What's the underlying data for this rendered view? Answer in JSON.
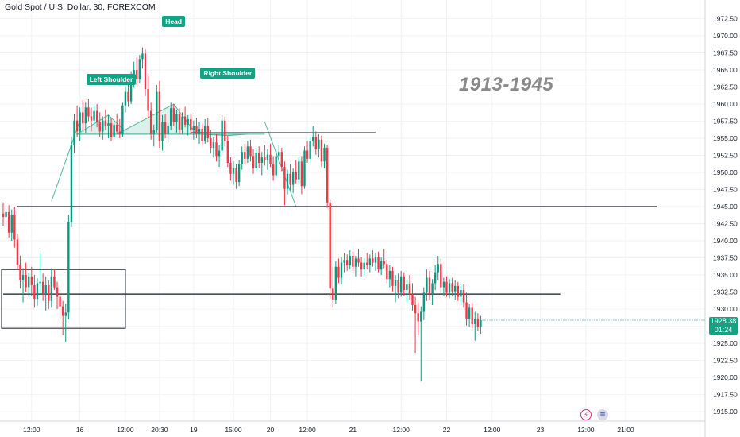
{
  "header": {
    "title": "Gold Spot / U.S. Dollar, 30, FOREXCOM"
  },
  "annotation_text": "1913-1945",
  "pattern_labels": {
    "left_shoulder": "Left Shoulder",
    "head": "Head",
    "right_shoulder": "Right Shoulder"
  },
  "last_price": {
    "price": "1928.38",
    "countdown": "01:24"
  },
  "colors": {
    "up": "#089981",
    "down": "#f23645",
    "accent": "#12a385",
    "pattern_fill": "#d6efe7",
    "pattern_stroke": "#4fb89a"
  },
  "icons": [
    "lightning-icon",
    "us-flag-icon"
  ],
  "chart_data": {
    "type": "candlestick",
    "symbol": "Gold Spot / U.S. Dollar",
    "interval": "30",
    "source": "FOREXCOM",
    "y_ticks": [
      1915.0,
      1917.5,
      1920.0,
      1922.5,
      1925.0,
      1927.5,
      1930.0,
      1932.5,
      1935.0,
      1937.5,
      1940.0,
      1942.5,
      1945.0,
      1947.5,
      1950.0,
      1952.5,
      1955.0,
      1957.5,
      1960.0,
      1962.5,
      1965.0,
      1967.5,
      1970.0,
      1972.5
    ],
    "y_tick_labels": [
      "1915.00",
      "1917.50",
      "1920.00",
      "1922.50",
      "1925.00",
      "1927.50",
      "1930.00",
      "1932.50",
      "1935.00",
      "1937.50",
      "1940.00",
      "1942.50",
      "1945.00",
      "1947.50",
      "1950.00",
      "1952.50",
      "1955.00",
      "1957.50",
      "1960.00",
      "1962.50",
      "1965.00",
      "1967.50",
      "1970.00",
      "1972.50"
    ],
    "ylim": [
      1914.2,
      1974.3
    ],
    "x_ticks": [
      {
        "label": "12:00",
        "bar": 10
      },
      {
        "label": "16",
        "bar": 27
      },
      {
        "label": "12:00",
        "bar": 43
      },
      {
        "label": "20:30",
        "bar": 55
      },
      {
        "label": "19",
        "bar": 67
      },
      {
        "label": "15:00",
        "bar": 81
      },
      {
        "label": "20",
        "bar": 94
      },
      {
        "label": "12:00",
        "bar": 107
      },
      {
        "label": "21",
        "bar": 123
      },
      {
        "label": "12:00",
        "bar": 140
      },
      {
        "label": "22",
        "bar": 156
      },
      {
        "label": "12:00",
        "bar": 172
      },
      {
        "label": "23",
        "bar": 189
      },
      {
        "label": "12:00",
        "bar": 205
      },
      {
        "label": "21:00",
        "bar": 219
      }
    ],
    "key_levels": [
      {
        "price": 1955.8,
        "from_bar": 66,
        "to_bar": 131
      },
      {
        "price": 1945.0,
        "from_bar": 5,
        "to_bar": 230
      },
      {
        "price": 1932.2,
        "from_bar": 0,
        "to_bar": 196
      }
    ],
    "box": {
      "from_bar": 0,
      "to_bar": 43,
      "top": 1935.8,
      "bottom": 1927.2
    },
    "last_price": 1928.38,
    "candles": [
      [
        1944.0,
        1945.6,
        1942.2,
        1943.5
      ],
      [
        1943.5,
        1944.8,
        1941.8,
        1944.2
      ],
      [
        1944.2,
        1945.2,
        1940.5,
        1941.2
      ],
      [
        1941.2,
        1944.6,
        1940.0,
        1943.8
      ],
      [
        1943.8,
        1945.0,
        1939.0,
        1940.2
      ],
      [
        1940.2,
        1941.0,
        1935.8,
        1936.5
      ],
      [
        1936.5,
        1937.8,
        1933.0,
        1934.2
      ],
      [
        1934.2,
        1936.0,
        1931.0,
        1935.0
      ],
      [
        1935.0,
        1936.8,
        1932.5,
        1933.2
      ],
      [
        1933.2,
        1935.4,
        1931.8,
        1934.8
      ],
      [
        1934.8,
        1936.2,
        1932.0,
        1933.5
      ],
      [
        1933.5,
        1935.0,
        1930.2,
        1931.5
      ],
      [
        1931.5,
        1934.5,
        1930.5,
        1933.8
      ],
      [
        1933.8,
        1938.2,
        1932.2,
        1934.0
      ],
      [
        1934.0,
        1935.2,
        1931.2,
        1932.2
      ],
      [
        1932.2,
        1934.8,
        1929.8,
        1933.5
      ],
      [
        1933.5,
        1934.2,
        1930.0,
        1931.2
      ],
      [
        1931.2,
        1936.0,
        1930.2,
        1934.8
      ],
      [
        1934.8,
        1935.8,
        1932.8,
        1933.2
      ],
      [
        1933.2,
        1934.0,
        1930.0,
        1931.8
      ],
      [
        1931.8,
        1933.2,
        1928.6,
        1930.4
      ],
      [
        1930.4,
        1931.2,
        1926.2,
        1929.0
      ],
      [
        1929.0,
        1930.8,
        1925.2,
        1929.5
      ],
      [
        1929.5,
        1943.8,
        1928.5,
        1942.8
      ],
      [
        1942.8,
        1955.2,
        1942.0,
        1954.0
      ],
      [
        1954.0,
        1958.5,
        1952.8,
        1957.6
      ],
      [
        1957.6,
        1959.8,
        1955.2,
        1956.0
      ],
      [
        1956.0,
        1959.5,
        1954.6,
        1958.8
      ],
      [
        1958.8,
        1960.6,
        1956.2,
        1957.2
      ],
      [
        1957.2,
        1960.2,
        1955.8,
        1959.5
      ],
      [
        1959.5,
        1960.8,
        1957.5,
        1958.2
      ],
      [
        1958.2,
        1959.5,
        1956.0,
        1957.6
      ],
      [
        1957.6,
        1959.8,
        1956.8,
        1959.0
      ],
      [
        1959.0,
        1960.0,
        1956.6,
        1957.4
      ],
      [
        1957.4,
        1958.8,
        1955.2,
        1956.0
      ],
      [
        1956.0,
        1958.2,
        1954.8,
        1957.6
      ],
      [
        1957.6,
        1959.2,
        1956.2,
        1956.8
      ],
      [
        1956.8,
        1958.4,
        1955.0,
        1957.2
      ],
      [
        1957.2,
        1958.0,
        1954.6,
        1955.2
      ],
      [
        1955.2,
        1957.8,
        1954.8,
        1957.0
      ],
      [
        1957.0,
        1958.6,
        1955.6,
        1956.0
      ],
      [
        1956.0,
        1957.8,
        1955.0,
        1955.6
      ],
      [
        1955.6,
        1960.2,
        1955.2,
        1959.8
      ],
      [
        1959.8,
        1962.6,
        1958.8,
        1961.8
      ],
      [
        1961.8,
        1963.2,
        1959.6,
        1960.4
      ],
      [
        1960.4,
        1964.8,
        1960.0,
        1963.9
      ],
      [
        1963.9,
        1966.2,
        1962.4,
        1965.0
      ],
      [
        1965.0,
        1966.8,
        1962.8,
        1963.6
      ],
      [
        1963.6,
        1967.2,
        1963.0,
        1966.6
      ],
      [
        1966.6,
        1968.3,
        1965.2,
        1967.4
      ],
      [
        1967.4,
        1968.0,
        1961.2,
        1962.2
      ],
      [
        1962.2,
        1964.2,
        1958.0,
        1959.0
      ],
      [
        1959.0,
        1960.2,
        1954.8,
        1955.6
      ],
      [
        1955.6,
        1957.0,
        1953.8,
        1956.2
      ],
      [
        1956.2,
        1962.8,
        1955.8,
        1961.8
      ],
      [
        1961.8,
        1963.4,
        1953.6,
        1954.6
      ],
      [
        1954.6,
        1958.4,
        1953.2,
        1957.4
      ],
      [
        1957.4,
        1958.6,
        1955.0,
        1955.6
      ],
      [
        1955.6,
        1957.2,
        1954.4,
        1956.8
      ],
      [
        1956.8,
        1960.2,
        1956.2,
        1959.4
      ],
      [
        1959.4,
        1960.0,
        1956.8,
        1957.4
      ],
      [
        1957.4,
        1959.2,
        1955.8,
        1958.6
      ],
      [
        1958.6,
        1959.4,
        1955.6,
        1956.2
      ],
      [
        1956.2,
        1958.8,
        1955.6,
        1958.2
      ],
      [
        1958.2,
        1959.6,
        1956.6,
        1957.0
      ],
      [
        1957.0,
        1958.4,
        1955.4,
        1957.8
      ],
      [
        1957.8,
        1958.6,
        1955.6,
        1956.2
      ],
      [
        1956.2,
        1957.6,
        1954.8,
        1956.8
      ],
      [
        1956.8,
        1958.0,
        1955.0,
        1955.6
      ],
      [
        1955.6,
        1957.4,
        1954.2,
        1956.4
      ],
      [
        1956.4,
        1957.2,
        1954.0,
        1954.6
      ],
      [
        1954.6,
        1957.8,
        1954.2,
        1956.8
      ],
      [
        1956.8,
        1958.0,
        1954.4,
        1955.0
      ],
      [
        1955.0,
        1956.2,
        1952.8,
        1953.6
      ],
      [
        1953.6,
        1955.2,
        1952.2,
        1954.4
      ],
      [
        1954.4,
        1955.6,
        1951.6,
        1952.4
      ],
      [
        1952.4,
        1954.0,
        1950.8,
        1953.2
      ],
      [
        1953.2,
        1958.4,
        1952.6,
        1957.6
      ],
      [
        1957.6,
        1958.2,
        1953.8,
        1954.6
      ],
      [
        1954.6,
        1955.4,
        1950.8,
        1951.4
      ],
      [
        1951.4,
        1952.2,
        1948.8,
        1949.8
      ],
      [
        1949.8,
        1951.6,
        1948.2,
        1950.6
      ],
      [
        1950.6,
        1951.2,
        1947.6,
        1948.6
      ],
      [
        1948.6,
        1951.8,
        1948.0,
        1951.2
      ],
      [
        1951.2,
        1953.8,
        1950.4,
        1953.0
      ],
      [
        1953.0,
        1954.2,
        1951.2,
        1952.0
      ],
      [
        1952.0,
        1954.6,
        1951.4,
        1953.8
      ],
      [
        1953.8,
        1954.8,
        1951.6,
        1952.4
      ],
      [
        1952.4,
        1953.4,
        1949.8,
        1950.6
      ],
      [
        1950.6,
        1953.6,
        1950.2,
        1952.8
      ],
      [
        1952.8,
        1953.8,
        1950.6,
        1951.4
      ],
      [
        1951.4,
        1953.0,
        1949.6,
        1952.2
      ],
      [
        1952.2,
        1954.0,
        1951.0,
        1951.8
      ],
      [
        1951.8,
        1953.4,
        1950.4,
        1952.6
      ],
      [
        1952.6,
        1954.2,
        1950.8,
        1951.2
      ],
      [
        1951.2,
        1952.4,
        1948.8,
        1949.6
      ],
      [
        1949.6,
        1953.2,
        1949.2,
        1952.4
      ],
      [
        1952.4,
        1954.0,
        1951.6,
        1953.0
      ],
      [
        1953.0,
        1953.6,
        1950.2,
        1950.8
      ],
      [
        1950.8,
        1951.6,
        1945.2,
        1947.6
      ],
      [
        1947.6,
        1950.4,
        1946.8,
        1949.8
      ],
      [
        1949.8,
        1951.2,
        1947.4,
        1948.2
      ],
      [
        1948.2,
        1950.6,
        1947.0,
        1950.0
      ],
      [
        1950.0,
        1951.8,
        1948.4,
        1949.0
      ],
      [
        1949.0,
        1952.2,
        1948.2,
        1951.6
      ],
      [
        1951.6,
        1952.4,
        1946.8,
        1948.0
      ],
      [
        1948.0,
        1953.8,
        1947.6,
        1953.2
      ],
      [
        1953.2,
        1954.6,
        1951.4,
        1952.0
      ],
      [
        1952.0,
        1955.2,
        1951.4,
        1954.6
      ],
      [
        1954.6,
        1956.8,
        1953.8,
        1955.2
      ],
      [
        1955.2,
        1956.0,
        1952.6,
        1953.4
      ],
      [
        1953.4,
        1955.6,
        1952.2,
        1954.8
      ],
      [
        1954.8,
        1955.4,
        1950.8,
        1951.6
      ],
      [
        1951.6,
        1954.2,
        1950.6,
        1953.6
      ],
      [
        1953.6,
        1954.0,
        1944.8,
        1945.6
      ],
      [
        1945.6,
        1946.0,
        1931.5,
        1933.0
      ],
      [
        1933.0,
        1936.2,
        1930.2,
        1931.4
      ],
      [
        1931.4,
        1937.0,
        1930.8,
        1936.2
      ],
      [
        1936.2,
        1937.4,
        1933.8,
        1934.6
      ],
      [
        1934.6,
        1937.6,
        1933.6,
        1936.8
      ],
      [
        1936.8,
        1938.2,
        1935.4,
        1937.2
      ],
      [
        1937.2,
        1938.0,
        1935.6,
        1936.4
      ],
      [
        1936.4,
        1938.6,
        1935.8,
        1937.8
      ],
      [
        1937.8,
        1938.4,
        1935.6,
        1936.2
      ],
      [
        1936.2,
        1937.8,
        1934.8,
        1937.4
      ],
      [
        1937.4,
        1938.8,
        1936.2,
        1936.8
      ],
      [
        1936.8,
        1937.6,
        1934.8,
        1935.8
      ],
      [
        1935.8,
        1937.4,
        1935.0,
        1936.8
      ],
      [
        1936.8,
        1938.2,
        1935.8,
        1936.4
      ],
      [
        1936.4,
        1938.0,
        1935.4,
        1937.4
      ],
      [
        1937.4,
        1938.6,
        1936.2,
        1936.8
      ],
      [
        1936.8,
        1938.2,
        1935.6,
        1937.6
      ],
      [
        1937.6,
        1938.4,
        1935.4,
        1935.8
      ],
      [
        1935.8,
        1937.6,
        1935.0,
        1937.0
      ],
      [
        1937.0,
        1938.8,
        1936.0,
        1936.6
      ],
      [
        1936.6,
        1937.2,
        1933.8,
        1934.4
      ],
      [
        1934.4,
        1936.4,
        1933.2,
        1935.6
      ],
      [
        1935.6,
        1936.2,
        1932.6,
        1933.4
      ],
      [
        1933.4,
        1935.0,
        1931.0,
        1934.2
      ],
      [
        1934.2,
        1935.2,
        1931.6,
        1932.4
      ],
      [
        1932.4,
        1935.6,
        1931.8,
        1934.8
      ],
      [
        1934.8,
        1935.4,
        1932.0,
        1932.8
      ],
      [
        1932.8,
        1934.4,
        1931.0,
        1933.6
      ],
      [
        1933.6,
        1935.0,
        1931.4,
        1932.2
      ],
      [
        1932.2,
        1933.8,
        1929.8,
        1930.6
      ],
      [
        1930.6,
        1931.8,
        1923.6,
        1929.4
      ],
      [
        1929.4,
        1931.0,
        1926.2,
        1928.2
      ],
      [
        1928.2,
        1930.4,
        1919.4,
        1929.6
      ],
      [
        1929.6,
        1933.2,
        1928.4,
        1932.4
      ],
      [
        1932.4,
        1935.8,
        1931.2,
        1934.6
      ],
      [
        1934.6,
        1935.6,
        1931.4,
        1932.2
      ],
      [
        1932.2,
        1934.4,
        1930.6,
        1933.8
      ],
      [
        1933.8,
        1936.4,
        1932.8,
        1935.4
      ],
      [
        1935.4,
        1937.8,
        1934.2,
        1936.6
      ],
      [
        1936.6,
        1937.4,
        1932.4,
        1933.2
      ],
      [
        1933.2,
        1934.6,
        1932.0,
        1934.0
      ],
      [
        1934.0,
        1934.8,
        1931.8,
        1932.4
      ],
      [
        1932.4,
        1934.4,
        1931.6,
        1933.8
      ],
      [
        1933.8,
        1934.6,
        1932.0,
        1932.6
      ],
      [
        1932.6,
        1934.2,
        1931.4,
        1933.4
      ],
      [
        1933.4,
        1934.0,
        1931.2,
        1931.8
      ],
      [
        1931.8,
        1933.6,
        1930.8,
        1932.8
      ],
      [
        1932.8,
        1933.6,
        1930.2,
        1931.0
      ],
      [
        1931.0,
        1932.4,
        1927.6,
        1928.6
      ],
      [
        1928.6,
        1930.8,
        1927.4,
        1930.2
      ],
      [
        1930.2,
        1931.0,
        1927.2,
        1927.8
      ],
      [
        1927.8,
        1929.6,
        1925.4,
        1928.6
      ],
      [
        1928.6,
        1929.4,
        1926.8,
        1927.4
      ],
      [
        1927.4,
        1929.0,
        1926.4,
        1928.4
      ]
    ]
  }
}
